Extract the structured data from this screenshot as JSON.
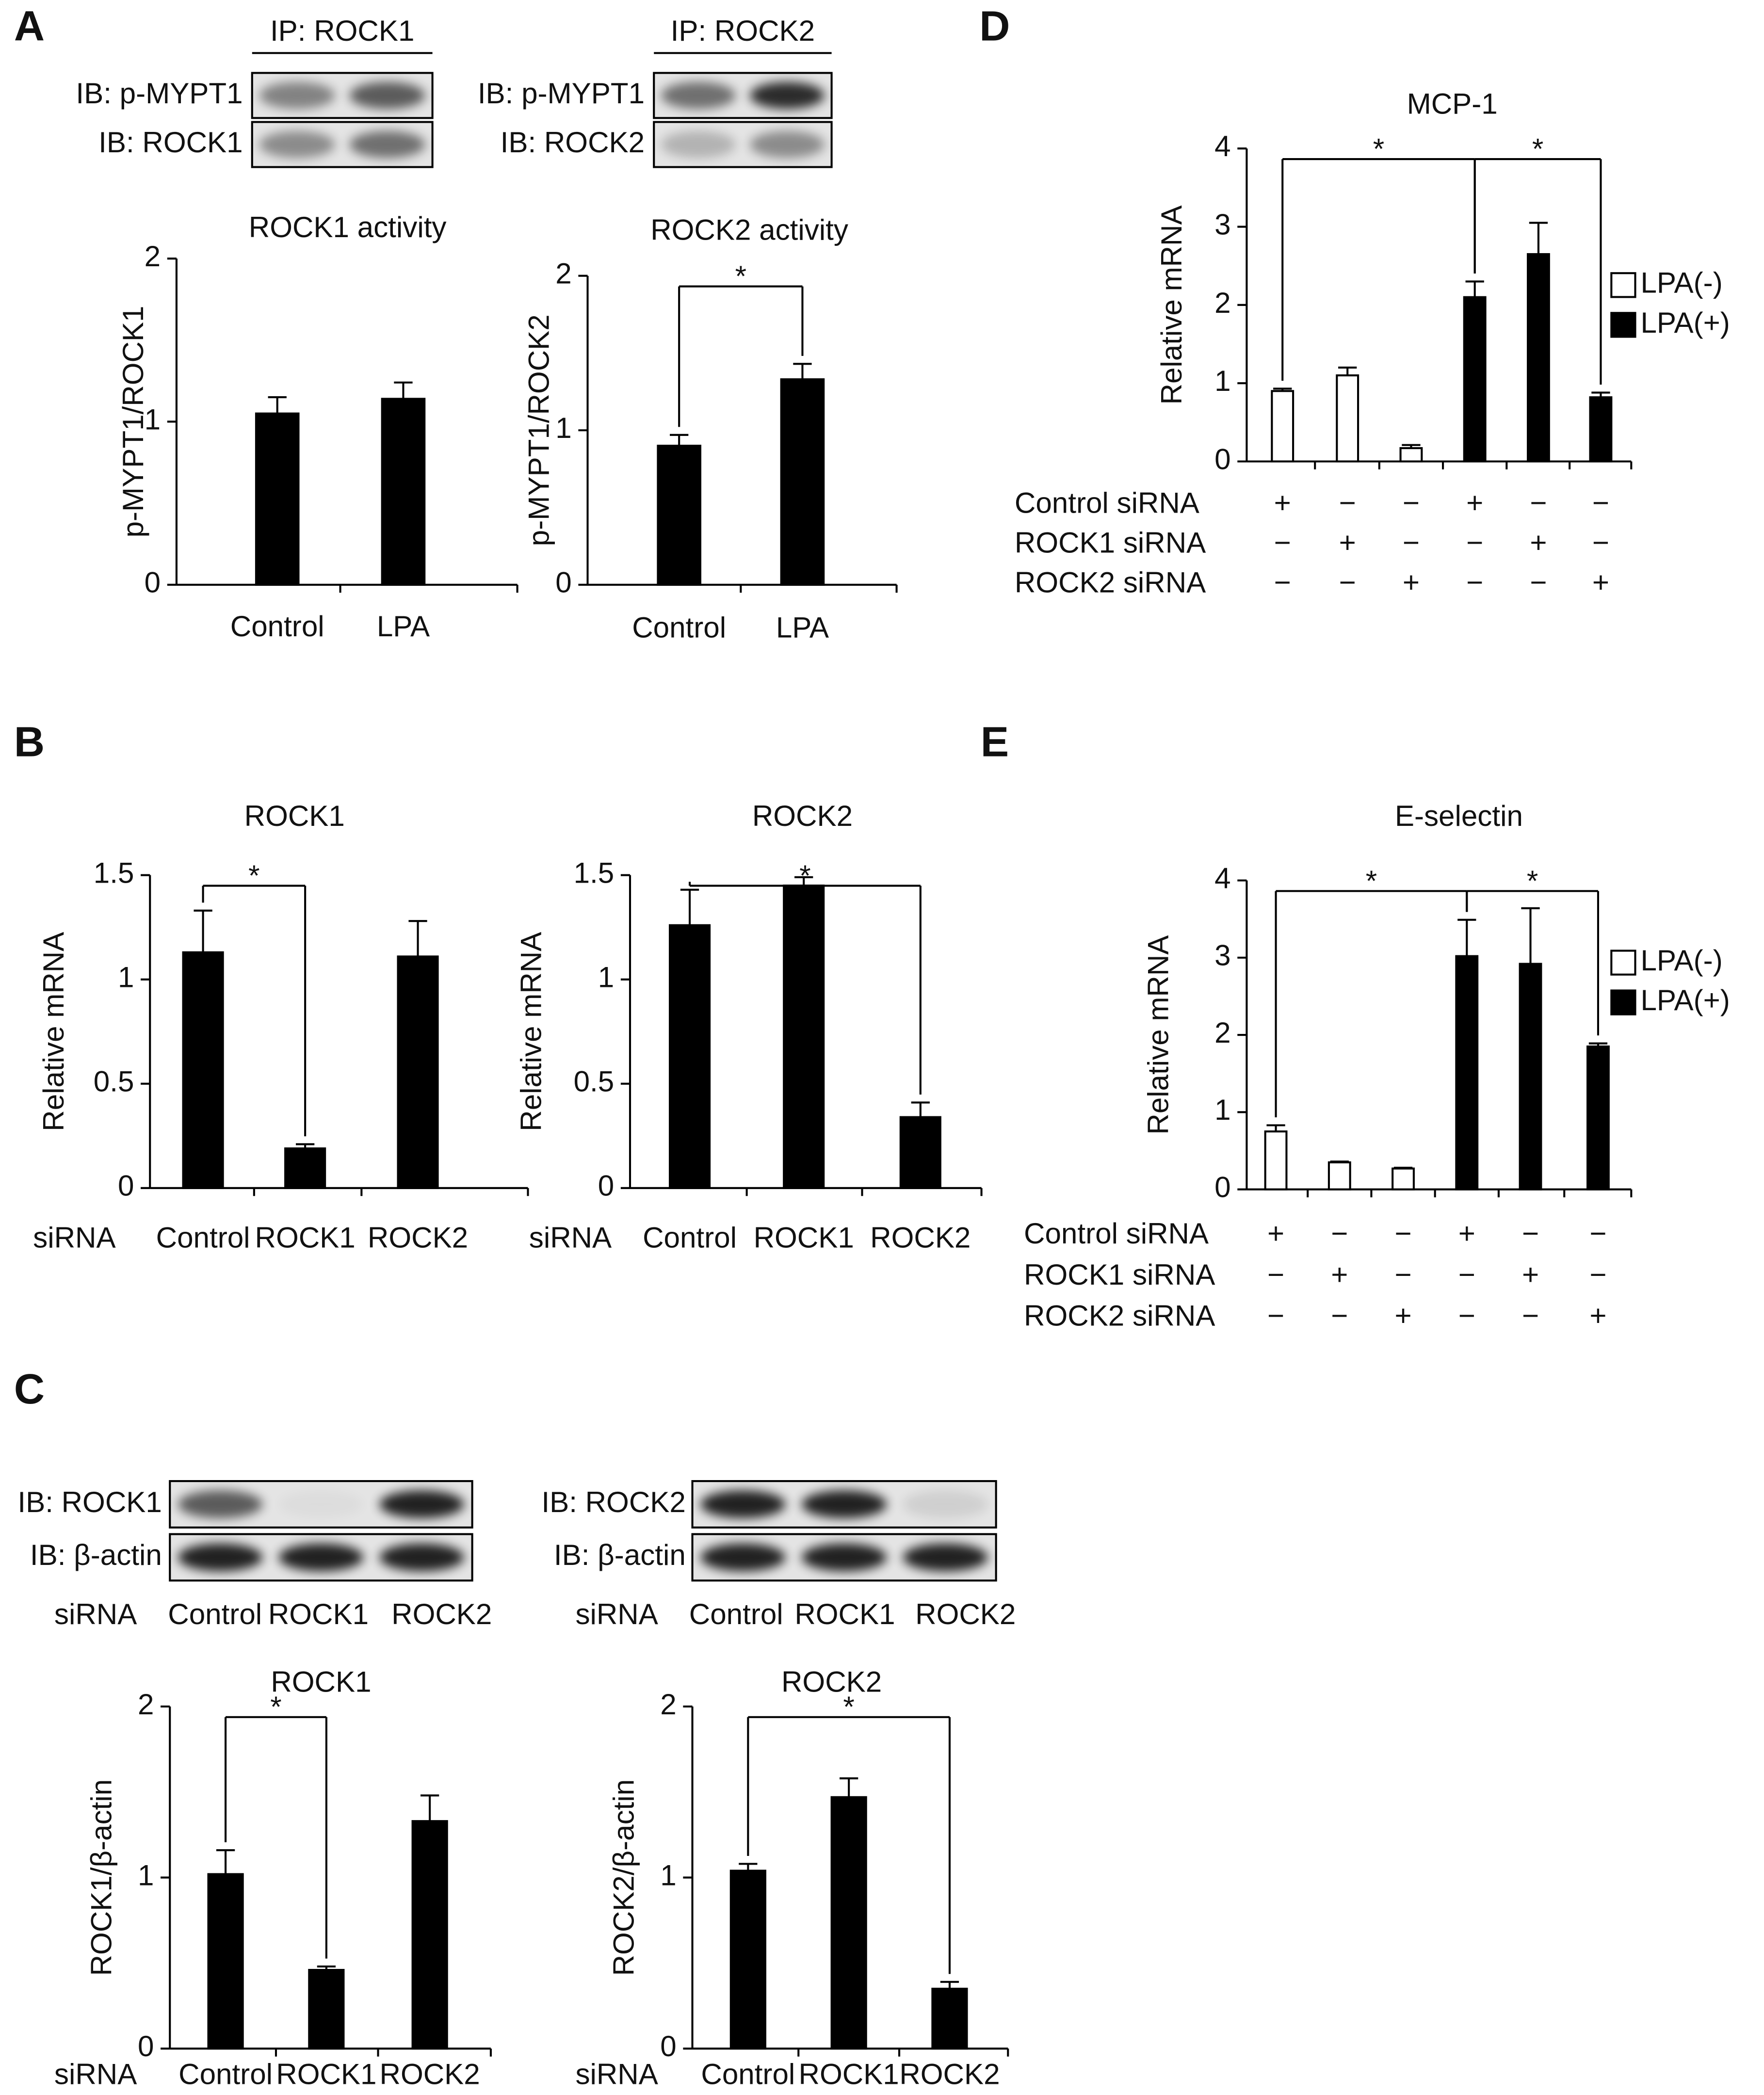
{
  "panel_labels": [
    "A",
    "B",
    "C",
    "D",
    "E"
  ],
  "blots": [
    {
      "header": "IP: ROCK1",
      "rows": [
        "IB: p-MYPT1",
        "IB: ROCK1"
      ]
    },
    {
      "header": "IP: ROCK2",
      "rows": [
        "IB: p-MYPT1",
        "IB: ROCK2"
      ]
    },
    {
      "rows": [
        "IB: ROCK1",
        "IB: β-actin"
      ],
      "lane_label": "siRNA",
      "lanes": [
        "Control",
        "ROCK1",
        "ROCK2"
      ]
    },
    {
      "rows": [
        "IB: ROCK2",
        "IB: β-actin"
      ],
      "lane_label": "siRNA",
      "lanes": [
        "Control",
        "ROCK1",
        "ROCK2"
      ]
    }
  ],
  "chart_data": [
    {
      "type": "bar",
      "title": "ROCK1  activity",
      "ylabel": "p-MYPT1/ROCK1",
      "categories": [
        "Control",
        "LPA"
      ],
      "values": [
        1.05,
        1.14
      ],
      "errors": [
        0.1,
        0.1
      ],
      "color": "#000000",
      "ylim": [
        0,
        2
      ],
      "yticks": [
        0,
        1,
        2
      ]
    },
    {
      "type": "bar",
      "title": "ROCK2  activity",
      "ylabel": "p-MYPT1/ROCK2",
      "categories": [
        "Control",
        "LPA"
      ],
      "values": [
        0.9,
        1.33
      ],
      "errors": [
        0.07,
        0.1
      ],
      "color": "#000000",
      "ylim": [
        0,
        2
      ],
      "yticks": [
        0,
        1,
        2
      ],
      "significance": [
        {
          "label": "*",
          "groups": [
            0,
            1
          ]
        }
      ]
    },
    {
      "type": "bar",
      "title": "ROCK1",
      "ylabel": "Relative  mRNA",
      "xlabel": "siRNA",
      "categories": [
        "Control",
        "ROCK1",
        "ROCK2"
      ],
      "values": [
        1.13,
        0.19,
        1.11
      ],
      "errors": [
        0.2,
        0.02,
        0.17
      ],
      "color": "#000000",
      "ylim": [
        0,
        1.5
      ],
      "yticks": [
        0,
        0.5,
        1,
        1.5
      ],
      "significance": [
        {
          "label": "*",
          "groups": [
            0,
            1
          ]
        }
      ]
    },
    {
      "type": "bar",
      "title": "ROCK2",
      "ylabel": "Relative  mRNA",
      "xlabel": "siRNA",
      "categories": [
        "Control",
        "ROCK1",
        "ROCK2"
      ],
      "values": [
        1.26,
        1.45,
        0.34
      ],
      "errors": [
        0.17,
        0.04,
        0.07
      ],
      "color": "#000000",
      "ylim": [
        0,
        1.5
      ],
      "yticks": [
        0,
        0.5,
        1,
        1.5
      ],
      "significance": [
        {
          "label": "*",
          "groups": [
            0,
            2
          ]
        }
      ]
    },
    {
      "type": "bar",
      "title": "ROCK1",
      "ylabel": "ROCK1/β-actin",
      "xlabel": "siRNA",
      "categories": [
        "Control",
        "ROCK1",
        "ROCK2"
      ],
      "values": [
        1.02,
        0.46,
        1.33
      ],
      "errors": [
        0.14,
        0.02,
        0.15
      ],
      "color": "#000000",
      "ylim": [
        0,
        2
      ],
      "yticks": [
        0,
        1,
        2
      ],
      "significance": [
        {
          "label": "*",
          "groups": [
            0,
            1
          ]
        }
      ]
    },
    {
      "type": "bar",
      "title": "ROCK2",
      "ylabel": "ROCK2/β-actin",
      "xlabel": "siRNA",
      "categories": [
        "Control",
        "ROCK1",
        "ROCK2"
      ],
      "values": [
        1.04,
        1.47,
        0.35
      ],
      "errors": [
        0.04,
        0.11,
        0.04
      ],
      "color": "#000000",
      "ylim": [
        0,
        2
      ],
      "yticks": [
        0,
        1,
        2
      ],
      "significance": [
        {
          "label": "*",
          "groups": [
            0,
            2
          ]
        }
      ]
    },
    {
      "type": "bar",
      "title": "MCP-1",
      "ylabel": "Relative  mRNA",
      "ylim": [
        0,
        4
      ],
      "yticks": [
        0,
        1,
        2,
        3,
        4
      ],
      "legend": "right",
      "series": [
        {
          "name": "LPA(-)",
          "color": "#ffffff",
          "values": [
            0.9,
            1.1,
            0.17,
            null,
            null,
            null
          ],
          "errors": [
            0.03,
            0.1,
            0.04,
            null,
            null,
            null
          ]
        },
        {
          "name": "LPA(+)",
          "color": "#000000",
          "values": [
            null,
            null,
            null,
            2.1,
            2.65,
            0.82
          ],
          "errors": [
            null,
            null,
            null,
            0.2,
            0.4,
            0.06
          ]
        }
      ],
      "conditions": [
        {
          "label": "Control  siRNA",
          "signs": [
            "+",
            "−",
            "−",
            "+",
            "−",
            "−"
          ]
        },
        {
          "label": "ROCK1  siRNA",
          "signs": [
            "−",
            "+",
            "−",
            "−",
            "+",
            "−"
          ]
        },
        {
          "label": "ROCK2  siRNA",
          "signs": [
            "−",
            "−",
            "+",
            "−",
            "−",
            "+"
          ]
        }
      ],
      "significance": [
        {
          "label": "*",
          "groups": [
            0,
            3
          ]
        },
        {
          "label": "*",
          "groups": [
            3,
            5
          ]
        }
      ]
    },
    {
      "type": "bar",
      "title": "E-selectin",
      "ylabel": "Relative  mRNA",
      "ylim": [
        0,
        4
      ],
      "yticks": [
        0,
        1,
        2,
        3,
        4
      ],
      "legend": "right",
      "series": [
        {
          "name": "LPA(-)",
          "color": "#ffffff",
          "values": [
            0.75,
            0.35,
            0.27,
            null,
            null,
            null
          ],
          "errors": [
            0.08,
            0.01,
            0.01,
            null,
            null,
            null
          ]
        },
        {
          "name": "LPA(+)",
          "color": "#000000",
          "values": [
            null,
            null,
            null,
            3.02,
            2.92,
            1.85
          ],
          "errors": [
            null,
            null,
            null,
            0.47,
            0.72,
            0.04
          ]
        }
      ],
      "conditions": [
        {
          "label": "Control  siRNA",
          "signs": [
            "+",
            "−",
            "−",
            "+",
            "−",
            "−"
          ]
        },
        {
          "label": "ROCK1  siRNA",
          "signs": [
            "−",
            "+",
            "−",
            "−",
            "+",
            "−"
          ]
        },
        {
          "label": "ROCK2  siRNA",
          "signs": [
            "−",
            "−",
            "+",
            "−",
            "−",
            "+"
          ]
        }
      ],
      "significance": [
        {
          "label": "*",
          "groups": [
            0,
            3
          ]
        },
        {
          "label": "*",
          "groups": [
            3,
            5
          ]
        }
      ]
    }
  ]
}
